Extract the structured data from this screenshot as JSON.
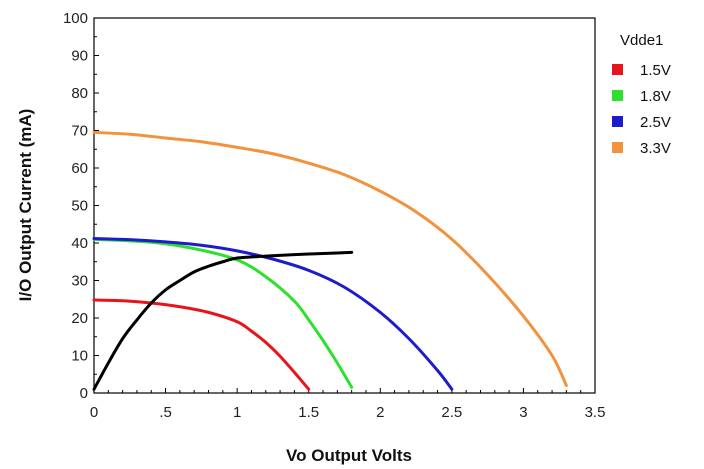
{
  "chart_data": {
    "type": "line",
    "xlabel": "Vo Output Volts",
    "ylabel": "I/O Output Current (mA)",
    "xlim": [
      0,
      3.5
    ],
    "ylim": [
      0,
      100
    ],
    "x_ticks": [
      {
        "value": 0,
        "label": "0"
      },
      {
        "value": 0.5,
        "label": ".5"
      },
      {
        "value": 1,
        "label": "1"
      },
      {
        "value": 1.5,
        "label": "1.5"
      },
      {
        "value": 2,
        "label": "2"
      },
      {
        "value": 2.5,
        "label": "2.5"
      },
      {
        "value": 3,
        "label": "3"
      },
      {
        "value": 3.5,
        "label": "3.5"
      }
    ],
    "y_ticks": [
      0,
      10,
      20,
      30,
      40,
      50,
      60,
      70,
      80,
      90,
      100
    ],
    "grid": false,
    "legend": {
      "title": "Vdde1",
      "position": "right",
      "entries": [
        {
          "label": "1.5V",
          "color": "#e8141c"
        },
        {
          "label": "1.8V",
          "color": "#2ee02e"
        },
        {
          "label": "2.5V",
          "color": "#1c1ccc"
        },
        {
          "label": "3.3V",
          "color": "#f2923c"
        }
      ]
    },
    "series": [
      {
        "name": "1.5V",
        "color": "#e8141c",
        "x": [
          0,
          0.2,
          0.4,
          0.6,
          0.8,
          1.0,
          1.1,
          1.2,
          1.3,
          1.4,
          1.5
        ],
        "y": [
          24.8,
          24.6,
          24.0,
          23.0,
          21.5,
          19.0,
          16.5,
          13.5,
          9.8,
          5.5,
          1
        ]
      },
      {
        "name": "1.8V",
        "color": "#2ee02e",
        "x": [
          0,
          0.4,
          0.7,
          1.0,
          1.2,
          1.4,
          1.5,
          1.6,
          1.7,
          1.8
        ],
        "y": [
          41.0,
          40.2,
          38.5,
          35.5,
          31.0,
          24.5,
          19.5,
          14.0,
          8.0,
          1.5
        ]
      },
      {
        "name": "2.5V",
        "color": "#1c1ccc",
        "x": [
          0,
          0.25,
          0.5,
          0.75,
          1.0,
          1.25,
          1.5,
          1.75,
          2.0,
          2.2,
          2.4,
          2.5
        ],
        "y": [
          41.2,
          40.9,
          40.3,
          39.4,
          37.9,
          35.7,
          32.7,
          28.2,
          21.5,
          14.5,
          6.0,
          1
        ]
      },
      {
        "name": "3.3V",
        "color": "#f2923c",
        "x": [
          0,
          0.25,
          0.5,
          0.75,
          1.0,
          1.25,
          1.5,
          1.75,
          2.0,
          2.25,
          2.5,
          2.75,
          3.0,
          3.2,
          3.3
        ],
        "y": [
          69.5,
          69.0,
          68.0,
          67.0,
          65.5,
          63.8,
          61.3,
          58.2,
          53.8,
          48.3,
          41.0,
          31.5,
          20.5,
          10.0,
          2
        ]
      },
      {
        "name": "",
        "color": "#000000",
        "x": [
          0,
          0.1,
          0.2,
          0.3,
          0.4,
          0.5,
          0.6,
          0.7,
          0.8,
          0.9,
          1.0,
          1.2,
          1.4,
          1.6,
          1.8
        ],
        "y": [
          1,
          8,
          14.5,
          19.5,
          24,
          27.5,
          30,
          32.3,
          33.8,
          35,
          36,
          36.5,
          36.9,
          37.2,
          37.5
        ]
      }
    ]
  }
}
